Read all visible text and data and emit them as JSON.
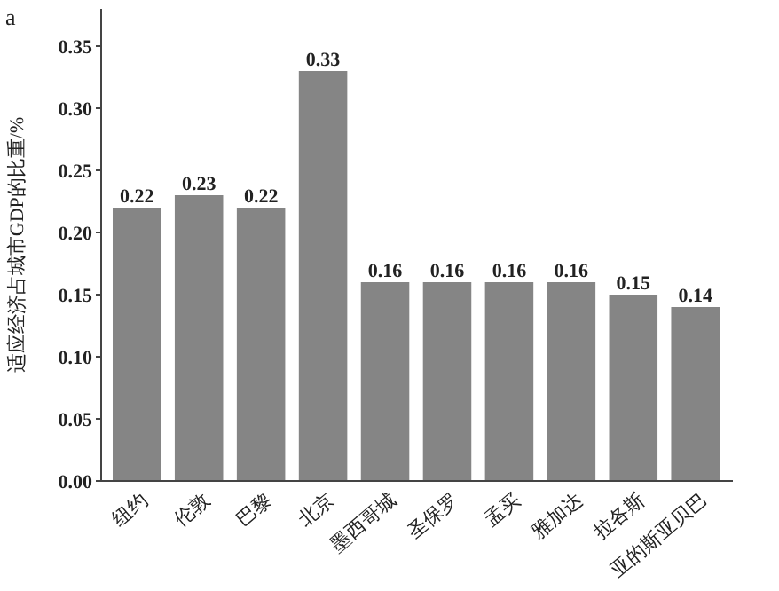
{
  "chart_data": {
    "type": "bar",
    "title": "a",
    "ylabel": "适应经济占城市GDP的比重/%",
    "categories": [
      "纽约",
      "伦敦",
      "巴黎",
      "北京",
      "墨西哥城",
      "圣保罗",
      "孟买",
      "雅加达",
      "拉各斯",
      "亚的斯亚贝巴"
    ],
    "values": [
      0.22,
      0.23,
      0.22,
      0.33,
      0.16,
      0.16,
      0.16,
      0.16,
      0.15,
      0.14
    ],
    "color": "#858585",
    "data_labels": true,
    "ylim": [
      0,
      0.38
    ],
    "yticks": [
      {
        "value": 0,
        "label": "0.00"
      },
      {
        "value": 0.05,
        "label": "0.05"
      },
      {
        "value": 0.1,
        "label": "0.10"
      },
      {
        "value": 0.15,
        "label": "0.15"
      },
      {
        "value": 0.2,
        "label": "0.20"
      },
      {
        "value": 0.25,
        "label": "0.25"
      },
      {
        "value": 0.3,
        "label": "0.30"
      },
      {
        "value": 0.35,
        "label": "0.35"
      }
    ],
    "grid": false
  }
}
